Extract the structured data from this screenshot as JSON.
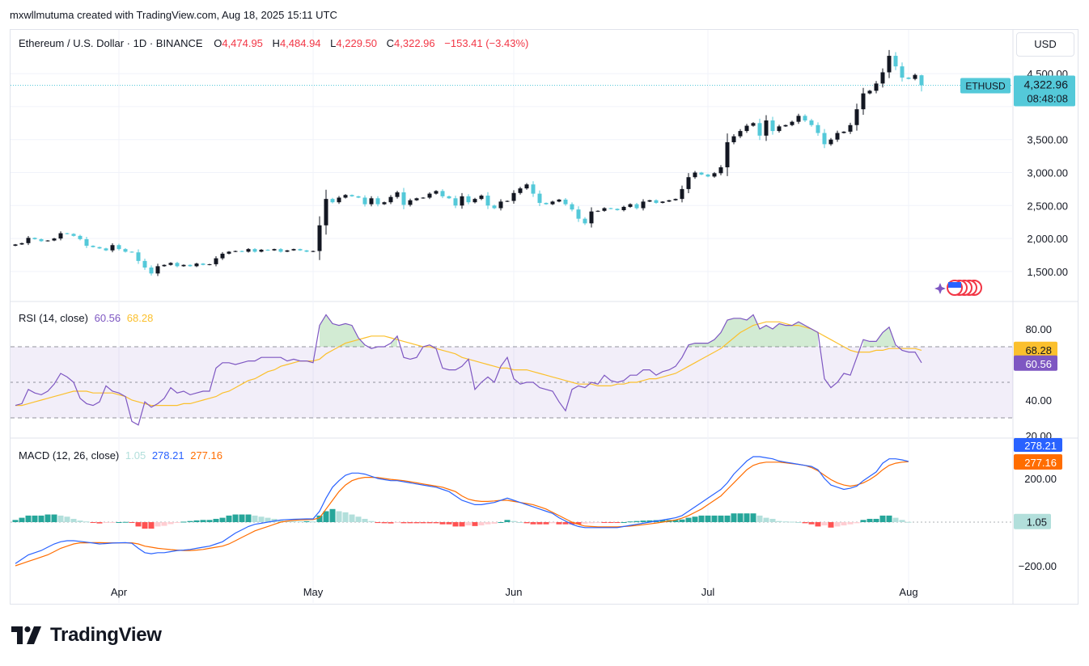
{
  "header": {
    "credit": "mxwllmutuma created with TradingView.com, Aug 18, 2025 15:11 UTC"
  },
  "price_legend": {
    "symbol": "Ethereum / U.S. Dollar · 1D · BINANCE",
    "open_label": "O",
    "open": "4,474.95",
    "high_label": "H",
    "high": "4,484.94",
    "low_label": "L",
    "low": "4,229.50",
    "close_label": "C",
    "close": "4,322.96",
    "change": "−153.41 (−3.43%)"
  },
  "rsi_legend": {
    "title": "RSI (14, close)",
    "rsi": "60.56",
    "ma": "68.28"
  },
  "macd_legend": {
    "title": "MACD (12, 26, close)",
    "hist": "1.05",
    "macd": "278.21",
    "signal": "277.16"
  },
  "currency_button": "USD",
  "last_price_tag": {
    "symbol": "ETHUSD",
    "price": "4,322.96",
    "countdown": "08:48:08"
  },
  "brand": {
    "name": "TradingView"
  },
  "colors": {
    "up": "#131722",
    "down": "#54c9d9",
    "rsi": "#7e57c2",
    "rsi_ma": "#fbc02d",
    "macd": "#2962ff",
    "signal": "#ff6d00",
    "hist_pos_strong": "#26a69a",
    "hist_pos_weak": "#b2dfdb",
    "hist_neg_strong": "#ff5252",
    "hist_neg_weak": "#ffcdd2",
    "tag": "#54c9d9"
  },
  "chart_data": [
    {
      "type": "candlestick",
      "title": "Ethereum / U.S. Dollar · 1D · BINANCE",
      "x_ticks": [
        "Apr",
        "May",
        "Jun",
        "Jul",
        "Aug"
      ],
      "y_ticks": [
        "1,500.00",
        "2,000.00",
        "2,500.00",
        "3,000.00",
        "3,500.00",
        "4,500.00"
      ],
      "ylim": [
        1100,
        4900
      ],
      "start_date": "2025-03-15",
      "close": [
        1910,
        1930,
        2010,
        1990,
        1960,
        1970,
        2000,
        2080,
        2070,
        2040,
        1990,
        1890,
        1870,
        1850,
        1820,
        1900,
        1840,
        1800,
        1790,
        1660,
        1560,
        1470,
        1580,
        1600,
        1630,
        1580,
        1600,
        1580,
        1620,
        1600,
        1610,
        1700,
        1770,
        1800,
        1810,
        1800,
        1840,
        1800,
        1830,
        1820,
        1840,
        1800,
        1820,
        1840,
        1820,
        1800,
        1810,
        2200,
        2600,
        2550,
        2620,
        2660,
        2640,
        2620,
        2520,
        2610,
        2520,
        2550,
        2630,
        2700,
        2510,
        2580,
        2610,
        2620,
        2680,
        2720,
        2640,
        2610,
        2500,
        2640,
        2550,
        2600,
        2650,
        2500,
        2460,
        2560,
        2570,
        2690,
        2760,
        2820,
        2680,
        2540,
        2520,
        2560,
        2590,
        2520,
        2440,
        2300,
        2230,
        2410,
        2420,
        2460,
        2450,
        2430,
        2480,
        2520,
        2460,
        2560,
        2580,
        2540,
        2560,
        2580,
        2600,
        2750,
        2930,
        3000,
        2970,
        2940,
        2990,
        3080,
        3460,
        3550,
        3630,
        3710,
        3750,
        3560,
        3790,
        3630,
        3700,
        3720,
        3770,
        3860,
        3790,
        3720,
        3600,
        3430,
        3500,
        3600,
        3620,
        3720,
        3960,
        4200,
        4240,
        4350,
        4520,
        4770,
        4610,
        4440,
        4420,
        4480,
        4323
      ],
      "open_last": 4474.95,
      "high_last": 4484.94,
      "low_last": 4229.5,
      "close_last": 4322.96
    },
    {
      "type": "line",
      "title": "RSI (14, close)",
      "y_ticks": [
        "20.00",
        "40.00",
        "80.00"
      ],
      "ylim": [
        18,
        84
      ],
      "bands": [
        30,
        50,
        70
      ],
      "series": [
        {
          "name": "RSI",
          "values": [
            37,
            38,
            46,
            44,
            43,
            45,
            49,
            55,
            53,
            50,
            41,
            38,
            37,
            39,
            48,
            45,
            44,
            42,
            28,
            26,
            39,
            36,
            38,
            41,
            47,
            44,
            45,
            43,
            44,
            45,
            45,
            58,
            61,
            61,
            60,
            61,
            62,
            62,
            64,
            64,
            64,
            64,
            62,
            63,
            62,
            62,
            61,
            82,
            88,
            83,
            82,
            83,
            82,
            75,
            71,
            69,
            70,
            70,
            72,
            76,
            64,
            63,
            64,
            70,
            71,
            69,
            58,
            57,
            57,
            59,
            63,
            46,
            50,
            53,
            50,
            59,
            64,
            52,
            49,
            50,
            50,
            47,
            46,
            45,
            39,
            34,
            46,
            48,
            47,
            50,
            49,
            54,
            51,
            50,
            51,
            54,
            54,
            57,
            57,
            54,
            56,
            57,
            59,
            64,
            71,
            72,
            72,
            72,
            74,
            78,
            85,
            86,
            86,
            85,
            88,
            80,
            82,
            80,
            83,
            82,
            82,
            84,
            82,
            80,
            78,
            52,
            47,
            50,
            55,
            54,
            64,
            74,
            73,
            73,
            78,
            81,
            71,
            68,
            67,
            67,
            61
          ]
        },
        {
          "name": "RSI MA",
          "values": [
            37,
            37,
            38,
            39,
            40,
            41,
            42,
            43,
            44,
            45,
            45,
            45,
            44,
            44,
            44,
            44,
            43,
            42,
            40,
            39,
            38,
            37,
            37,
            37,
            37,
            37,
            38,
            38,
            39,
            40,
            41,
            42,
            44,
            45,
            47,
            49,
            51,
            52,
            54,
            56,
            57,
            59,
            60,
            61,
            62,
            62,
            62,
            63,
            66,
            68,
            70,
            72,
            73,
            74,
            75,
            76,
            76,
            76,
            75,
            74,
            73,
            72,
            71,
            70,
            70,
            69,
            68,
            67,
            66,
            64,
            63,
            62,
            61,
            60,
            59,
            58,
            58,
            57,
            57,
            57,
            56,
            55,
            54,
            53,
            52,
            51,
            50,
            49,
            49,
            49,
            48,
            48,
            48,
            49,
            49,
            50,
            50,
            51,
            52,
            52,
            53,
            54,
            55,
            57,
            59,
            61,
            63,
            65,
            67,
            69,
            72,
            75,
            78,
            80,
            82,
            83,
            84,
            84,
            84,
            83,
            82,
            82,
            81,
            80,
            78,
            76,
            74,
            72,
            70,
            68,
            67,
            67,
            67,
            68,
            68,
            69,
            69,
            69,
            69,
            69,
            68
          ]
        }
      ]
    },
    {
      "type": "line",
      "title": "MACD (12, 26, close)",
      "y_ticks": [
        "200.00",
        "−200.00"
      ],
      "ylim": [
        -230,
        340
      ],
      "series": [
        {
          "name": "MACD",
          "values": [
            -190,
            -170,
            -150,
            -140,
            -130,
            -115,
            -100,
            -90,
            -85,
            -85,
            -88,
            -92,
            -96,
            -100,
            -98,
            -96,
            -95,
            -94,
            -97,
            -120,
            -140,
            -145,
            -140,
            -140,
            -135,
            -130,
            -128,
            -125,
            -120,
            -115,
            -110,
            -100,
            -90,
            -70,
            -50,
            -35,
            -20,
            -10,
            -5,
            0,
            5,
            10,
            12,
            13,
            14,
            15,
            15,
            50,
            110,
            160,
            190,
            215,
            225,
            225,
            220,
            210,
            200,
            195,
            190,
            190,
            185,
            180,
            175,
            170,
            165,
            160,
            150,
            140,
            120,
            100,
            90,
            80,
            80,
            85,
            90,
            100,
            110,
            100,
            90,
            80,
            70,
            60,
            50,
            40,
            20,
            5,
            -10,
            -20,
            -25,
            -25,
            -25,
            -25,
            -25,
            -25,
            -20,
            -15,
            -10,
            -5,
            0,
            5,
            10,
            15,
            20,
            30,
            50,
            70,
            90,
            110,
            130,
            150,
            180,
            220,
            250,
            280,
            300,
            300,
            295,
            290,
            280,
            275,
            270,
            265,
            260,
            255,
            240,
            200,
            170,
            160,
            150,
            155,
            165,
            190,
            210,
            230,
            270,
            290,
            290,
            285,
            278
          ]
        },
        {
          "name": "Signal",
          "values": [
            -200,
            -190,
            -180,
            -170,
            -160,
            -150,
            -135,
            -120,
            -110,
            -100,
            -95,
            -95,
            -94,
            -94,
            -95,
            -95,
            -95,
            -95,
            -95,
            -100,
            -110,
            -115,
            -120,
            -123,
            -126,
            -128,
            -130,
            -130,
            -128,
            -125,
            -120,
            -115,
            -110,
            -100,
            -85,
            -70,
            -55,
            -40,
            -30,
            -20,
            -10,
            0,
            5,
            8,
            10,
            11,
            12,
            20,
            60,
            100,
            140,
            170,
            190,
            200,
            205,
            205,
            204,
            200,
            196,
            193,
            190,
            185,
            180,
            175,
            170,
            165,
            160,
            150,
            140,
            120,
            105,
            98,
            95,
            95,
            97,
            100,
            100,
            95,
            90,
            85,
            80,
            70,
            60,
            45,
            30,
            15,
            0,
            -10,
            -18,
            -20,
            -22,
            -22,
            -22,
            -22,
            -20,
            -18,
            -15,
            -12,
            -8,
            -4,
            0,
            5,
            10,
            18,
            30,
            45,
            60,
            80,
            100,
            120,
            150,
            180,
            210,
            240,
            260,
            270,
            275,
            275,
            275,
            272,
            268,
            265,
            260,
            250,
            235,
            215,
            195,
            180,
            170,
            165,
            170,
            180,
            195,
            215,
            240,
            260,
            270,
            275,
            277
          ]
        },
        {
          "name": "Histogram",
          "values": [
            10,
            20,
            30,
            30,
            30,
            35,
            35,
            30,
            25,
            15,
            7,
            3,
            -2,
            -6,
            -3,
            -1,
            0,
            1,
            -2,
            -20,
            -30,
            -30,
            -20,
            -17,
            -9,
            -2,
            2,
            5,
            8,
            10,
            10,
            15,
            20,
            30,
            35,
            35,
            35,
            30,
            25,
            20,
            15,
            10,
            7,
            5,
            4,
            4,
            3,
            30,
            50,
            60,
            50,
            45,
            35,
            25,
            15,
            5,
            -4,
            -5,
            -6,
            -3,
            -5,
            -5,
            -5,
            -5,
            -5,
            -5,
            -10,
            -10,
            -20,
            -20,
            -15,
            -18,
            -15,
            -10,
            -7,
            0,
            10,
            5,
            0,
            -5,
            -10,
            -10,
            -10,
            -5,
            -10,
            -10,
            -10,
            -10,
            -7,
            -5,
            -3,
            -3,
            -3,
            -3,
            0,
            3,
            5,
            7,
            8,
            9,
            10,
            10,
            10,
            12,
            20,
            25,
            30,
            30,
            30,
            30,
            30,
            40,
            40,
            40,
            40,
            30,
            20,
            15,
            5,
            3,
            2,
            0,
            -5,
            -10,
            -20,
            -15,
            -25,
            -20,
            -15,
            -10,
            -5,
            10,
            15,
            15,
            30,
            30,
            20,
            10,
            1.05
          ]
        }
      ]
    }
  ]
}
